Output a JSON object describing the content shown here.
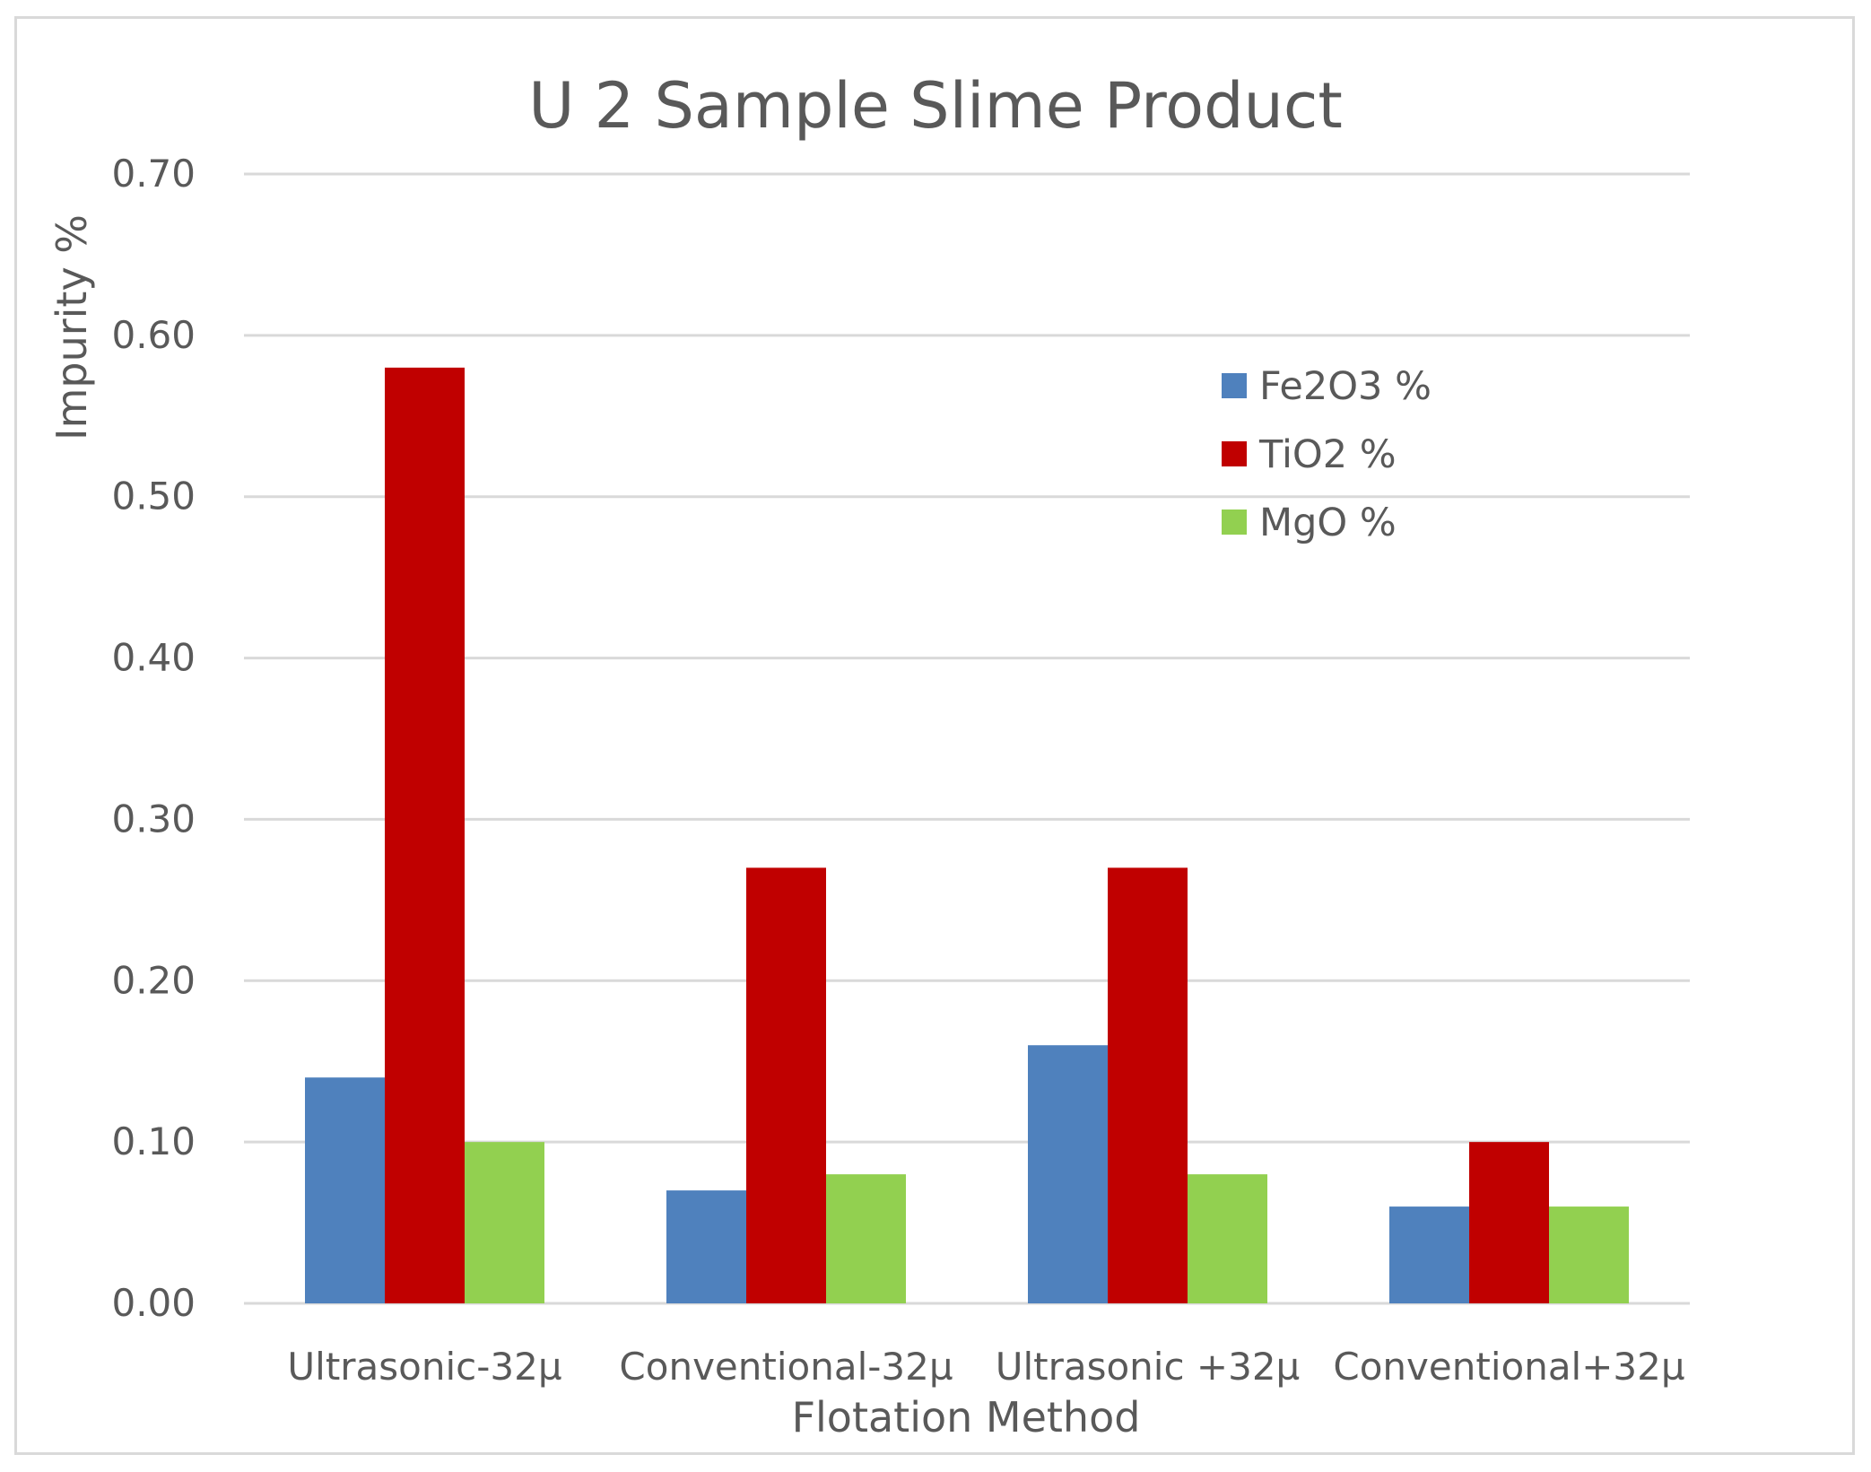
{
  "chart_data": {
    "type": "bar",
    "title": "U 2 Sample Slime Product",
    "xlabel": "Flotation Method",
    "ylabel": "Impurity %",
    "ylim": [
      0,
      0.7
    ],
    "yticks": [
      "0.00",
      "0.10",
      "0.20",
      "0.30",
      "0.40",
      "0.50",
      "0.60",
      "0.70"
    ],
    "grid": true,
    "legend_position": "top-right",
    "categories": [
      "Ultrasonic-32µ",
      "Conventional-32µ",
      "Ultrasonic +32µ",
      "Conventional+32µ"
    ],
    "series": [
      {
        "name": "Fe2O3 %",
        "color": "#4f81bd",
        "values": [
          0.14,
          0.07,
          0.16,
          0.06
        ]
      },
      {
        "name": "TiO2 %",
        "color": "#c00000",
        "values": [
          0.58,
          0.27,
          0.27,
          0.1
        ]
      },
      {
        "name": "MgO %",
        "color": "#92d050",
        "values": [
          0.1,
          0.08,
          0.08,
          0.06
        ]
      }
    ]
  }
}
